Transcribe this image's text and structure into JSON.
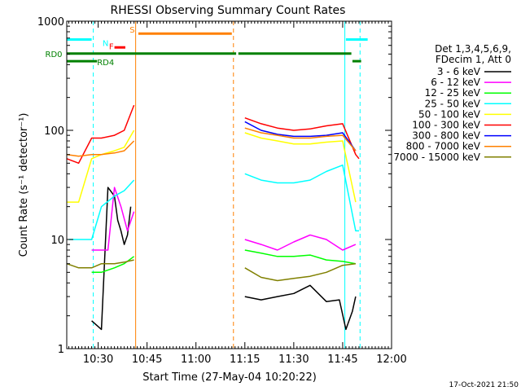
{
  "footer": {
    "generated": "17-Oct-2021 21:50"
  },
  "legend_header": {
    "line1": "Det 1,3,4,5,6,9,",
    "line2": "FDecim 1, Att 0"
  },
  "chart_data": {
    "type": "line",
    "title": "RHESSI Observing Summary Count Rates",
    "xlabel": "Start Time (27-May-04 10:20:22)",
    "ylabel": "Count Rate (s⁻¹ detector⁻¹)",
    "y_scale": "log",
    "ylim": [
      1,
      1000
    ],
    "xlim": [
      "10:20:22",
      "12:00"
    ],
    "x_ticks": [
      "10:30",
      "10:45",
      "11:00",
      "11:15",
      "11:30",
      "11:45",
      "12:00"
    ],
    "y_ticks": [
      "1",
      "10",
      "100",
      "1000"
    ],
    "grid": false,
    "legend_position": "right",
    "series": [
      {
        "name": "3 - 6 keV",
        "color": "#000000",
        "x": [
          "10:22",
          "10:27",
          "10:28",
          "10:31",
          "10:33",
          "10:35",
          "10:36",
          "10:37",
          "10:38",
          "10:39",
          "10:40",
          "10:41",
          "11:12",
          "11:15",
          "11:20",
          "11:25",
          "11:30",
          "11:35",
          "11:40",
          "11:44",
          "11:46",
          "11:48",
          "11:49"
        ],
        "values": [
          null,
          null,
          1.8,
          1.5,
          30,
          25,
          15,
          12,
          9,
          11,
          20,
          null,
          null,
          3,
          2.8,
          3,
          3.2,
          3.8,
          2.7,
          2.8,
          1.5,
          2.2,
          3
        ]
      },
      {
        "name": "6 - 12 keV",
        "color": "#ff00ff",
        "x": [
          "10:24",
          "10:28",
          "10:31",
          "10:33",
          "10:35",
          "10:37",
          "10:39",
          "10:41",
          "11:12",
          "11:15",
          "11:20",
          "11:25",
          "11:30",
          "11:35",
          "11:40",
          "11:45",
          "11:49"
        ],
        "values": [
          null,
          8,
          8,
          8,
          30,
          20,
          12,
          18,
          null,
          10,
          9,
          8,
          9.5,
          11,
          10,
          8,
          9
        ]
      },
      {
        "name": "12 - 25 keV",
        "color": "#00ff00",
        "x": [
          "10:24",
          "10:28",
          "10:31",
          "10:35",
          "10:38",
          "10:41",
          "11:12",
          "11:15",
          "11:20",
          "11:25",
          "11:30",
          "11:35",
          "11:40",
          "11:45",
          "11:49"
        ],
        "values": [
          null,
          5,
          5,
          5.5,
          6,
          7,
          null,
          8,
          7.5,
          7,
          7,
          7.2,
          6.5,
          6.3,
          6
        ]
      },
      {
        "name": "25 - 50 keV",
        "color": "#00ffff",
        "x": [
          "10:21",
          "10:24",
          "10:28",
          "10:31",
          "10:35",
          "10:38",
          "10:41",
          "11:12",
          "11:15",
          "11:20",
          "11:25",
          "11:30",
          "11:35",
          "11:40",
          "11:45",
          "11:49",
          "11:50"
        ],
        "values": [
          10,
          10,
          10,
          20,
          25,
          28,
          35,
          null,
          40,
          35,
          33,
          33,
          35,
          42,
          48,
          12,
          12
        ]
      },
      {
        "name": "50 - 100 keV",
        "color": "#ffff00",
        "x": [
          "10:20:22",
          "10:24",
          "10:28",
          "10:31",
          "10:35",
          "10:38",
          "10:41",
          "11:12",
          "11:15",
          "11:20",
          "11:25",
          "11:30",
          "11:35",
          "11:40",
          "11:45",
          "11:49"
        ],
        "values": [
          22,
          22,
          55,
          60,
          65,
          70,
          100,
          null,
          95,
          85,
          80,
          75,
          75,
          78,
          80,
          22
        ]
      },
      {
        "name": "100 - 300 keV",
        "color": "#ff0000",
        "x": [
          "10:20:22",
          "10:24",
          "10:28",
          "10:31",
          "10:35",
          "10:38",
          "10:41",
          "11:12",
          "11:15",
          "11:20",
          "11:25",
          "11:30",
          "11:35",
          "11:40",
          "11:45",
          "11:49",
          "11:50"
        ],
        "values": [
          55,
          50,
          85,
          85,
          90,
          100,
          170,
          null,
          130,
          115,
          105,
          100,
          103,
          110,
          115,
          60,
          55
        ]
      },
      {
        "name": "300 - 800 keV",
        "color": "#0000ff",
        "x": [
          "11:12",
          "11:15",
          "11:20",
          "11:25",
          "11:30",
          "11:35",
          "11:40",
          "11:45",
          "11:49"
        ],
        "values": [
          null,
          120,
          100,
          92,
          88,
          88,
          90,
          95,
          65
        ]
      },
      {
        "name": "800 - 7000 keV",
        "color": "#ff8000",
        "x": [
          "10:20:22",
          "10:24",
          "10:28",
          "10:31",
          "10:35",
          "10:38",
          "10:41",
          "11:12",
          "11:15",
          "11:20",
          "11:25",
          "11:30",
          "11:35",
          "11:40",
          "11:45",
          "11:49"
        ],
        "values": [
          60,
          58,
          60,
          60,
          62,
          65,
          80,
          null,
          105,
          95,
          90,
          85,
          85,
          88,
          90,
          65
        ]
      },
      {
        "name": "7000 - 15000 keV",
        "color": "#808000",
        "x": [
          "10:20:22",
          "10:24",
          "10:28",
          "10:31",
          "10:35",
          "10:38",
          "10:41",
          "11:12",
          "11:15",
          "11:20",
          "11:25",
          "11:30",
          "11:35",
          "11:40",
          "11:45",
          "11:49"
        ],
        "values": [
          6,
          5.5,
          5.5,
          6,
          6,
          6.2,
          6.5,
          null,
          5.5,
          4.5,
          4.2,
          4.4,
          4.6,
          5,
          5.8,
          6
        ]
      }
    ],
    "annotations": [
      {
        "label": "N",
        "color": "#00ffff"
      },
      {
        "label": "F",
        "color": "#ff0000"
      },
      {
        "label": "S",
        "color": "#ff8000"
      },
      {
        "label": "RD0",
        "color": "#008000"
      },
      {
        "label": "RD4",
        "color": "#008000"
      }
    ]
  }
}
